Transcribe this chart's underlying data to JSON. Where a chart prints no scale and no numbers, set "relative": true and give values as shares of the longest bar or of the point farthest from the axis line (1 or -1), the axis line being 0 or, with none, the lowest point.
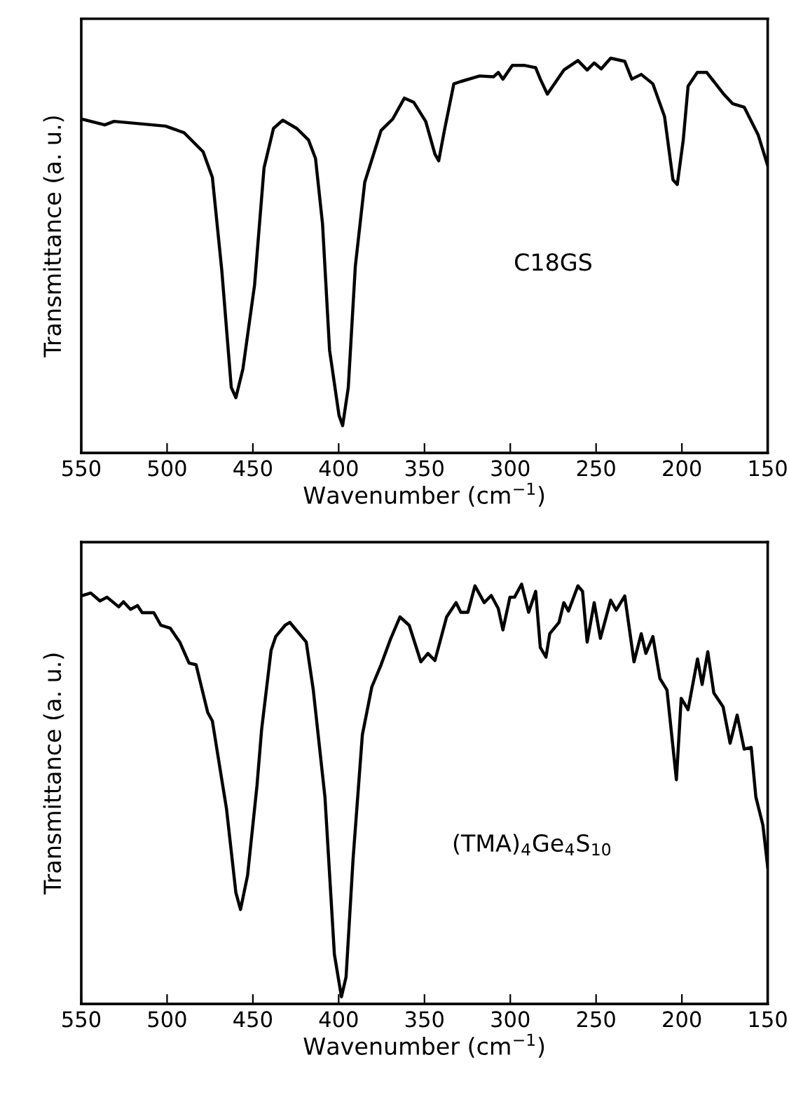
{
  "chart_data": [
    {
      "type": "line",
      "relative": true,
      "xlabel": "Wavenumber (cm$^{−1}$)",
      "ylabel": "Transmittance (a. u.)",
      "annotations": [
        "C18GS"
      ],
      "xlim": [
        550,
        150
      ],
      "xticks": [
        550,
        500,
        450,
        400,
        350,
        300,
        250,
        200,
        150
      ],
      "tick_labels": "x",
      "grid": false,
      "legend": false,
      "marker": "none",
      "line_style": "solid",
      "series": [
        {
          "color": "#000000",
          "x": [
            550,
            536.3,
            530.9,
            500.9,
            490,
            479,
            473.6,
            468.1,
            462.6,
            459.9,
            455.8,
            449,
            443.5,
            438,
            432.6,
            424.4,
            417.6,
            413.5,
            409.4,
            405.3,
            399.8,
            397.7,
            394.4,
            390.3,
            384.8,
            375.3,
            368.5,
            361.7,
            356.2,
            349.3,
            343.9,
            341.7,
            338.4,
            332.9,
            328.8,
            317.9,
            309.7,
            307,
            304.3,
            298.8,
            292,
            285.2,
            282.5,
            278.4,
            268.8,
            260.6,
            255.2,
            251.1,
            247,
            241.5,
            233.3,
            229.2,
            223.7,
            216.9,
            210.1,
            205.2,
            202.7,
            199.2,
            196.4,
            191,
            185.5,
            176,
            170.5,
            163.7,
            155.5,
            150
          ],
          "values": [
            0.846,
            0.831,
            0.84,
            0.828,
            0.811,
            0.763,
            0.698,
            0.462,
            0.166,
            0.14,
            0.213,
            0.426,
            0.722,
            0.822,
            0.843,
            0.822,
            0.793,
            0.746,
            0.58,
            0.26,
            0.095,
            0.069,
            0.166,
            0.473,
            0.686,
            0.817,
            0.846,
            0.899,
            0.888,
            0.84,
            0.757,
            0.74,
            0.817,
            0.935,
            0.941,
            0.955,
            0.953,
            0.964,
            0.947,
            0.982,
            0.982,
            0.976,
            0.947,
            0.909,
            0.97,
            0.994,
            0.97,
            0.988,
            0.973,
            1.0,
            0.992,
            0.947,
            0.959,
            0.935,
            0.852,
            0.692,
            0.68,
            0.793,
            0.929,
            0.964,
            0.964,
            0.911,
            0.885,
            0.876,
            0.805,
            0.728
          ]
        }
      ]
    },
    {
      "type": "line",
      "relative": true,
      "xlabel": "Wavenumber (cm$^{−1}$)",
      "ylabel": "Transmittance (a. u.)",
      "annotations": [
        "(TMA)$_{4}$Ge$_{4}$S$_{10}$"
      ],
      "xlim": [
        550,
        150
      ],
      "xticks": [
        550,
        500,
        450,
        400,
        350,
        300,
        250,
        200,
        150
      ],
      "tick_labels": "x",
      "grid": false,
      "legend": false,
      "marker": "none",
      "line_style": "solid",
      "series": [
        {
          "color": "#000000",
          "x": [
            550,
            544.5,
            539.1,
            535,
            528.2,
            525.4,
            521.3,
            517.2,
            514.5,
            507.7,
            503.6,
            498.1,
            492.6,
            487.2,
            483.1,
            476.3,
            473.6,
            468.1,
            465.4,
            459.9,
            457.2,
            453.1,
            447.6,
            444.9,
            439.4,
            436.7,
            431.2,
            428.5,
            424.4,
            418.9,
            414.8,
            408,
            402.5,
            398.4,
            395.7,
            391.6,
            386.2,
            380.7,
            375.3,
            369.8,
            364.3,
            358.9,
            352.1,
            348,
            343.9,
            337.1,
            331.6,
            328.8,
            324.7,
            320.6,
            315.2,
            311.1,
            307,
            304.3,
            300.2,
            297.5,
            293.4,
            289.3,
            285.2,
            282.5,
            279.2,
            277,
            271.6,
            268.8,
            266.1,
            260.6,
            257.9,
            255.2,
            251.1,
            247.5,
            241.5,
            238.3,
            233.3,
            227.9,
            223.7,
            221,
            216.9,
            212.8,
            208.7,
            203.2,
            200.4,
            196.4,
            190.9,
            188.2,
            184.9,
            181.4,
            176,
            171.9,
            167.8,
            163.7,
            159.6,
            156.9,
            152.8,
            150
          ],
          "values": [
            0.972,
            0.979,
            0.96,
            0.969,
            0.946,
            0.958,
            0.94,
            0.949,
            0.932,
            0.932,
            0.902,
            0.895,
            0.862,
            0.812,
            0.808,
            0.694,
            0.674,
            0.534,
            0.466,
            0.265,
            0.225,
            0.306,
            0.52,
            0.654,
            0.842,
            0.875,
            0.902,
            0.909,
            0.889,
            0.862,
            0.748,
            0.493,
            0.118,
            0.017,
            0.064,
            0.346,
            0.641,
            0.755,
            0.808,
            0.869,
            0.922,
            0.902,
            0.815,
            0.835,
            0.818,
            0.922,
            0.956,
            0.933,
            0.933,
            0.996,
            0.956,
            0.973,
            0.942,
            0.891,
            0.969,
            0.969,
            1.0,
            0.933,
            0.983,
            0.849,
            0.826,
            0.882,
            0.909,
            0.956,
            0.936,
            0.996,
            0.983,
            0.862,
            0.956,
            0.871,
            0.962,
            0.938,
            0.972,
            0.815,
            0.882,
            0.835,
            0.875,
            0.775,
            0.748,
            0.534,
            0.728,
            0.701,
            0.822,
            0.761,
            0.839,
            0.741,
            0.708,
            0.621,
            0.688,
            0.607,
            0.611,
            0.493,
            0.426,
            0.326
          ]
        }
      ]
    }
  ]
}
